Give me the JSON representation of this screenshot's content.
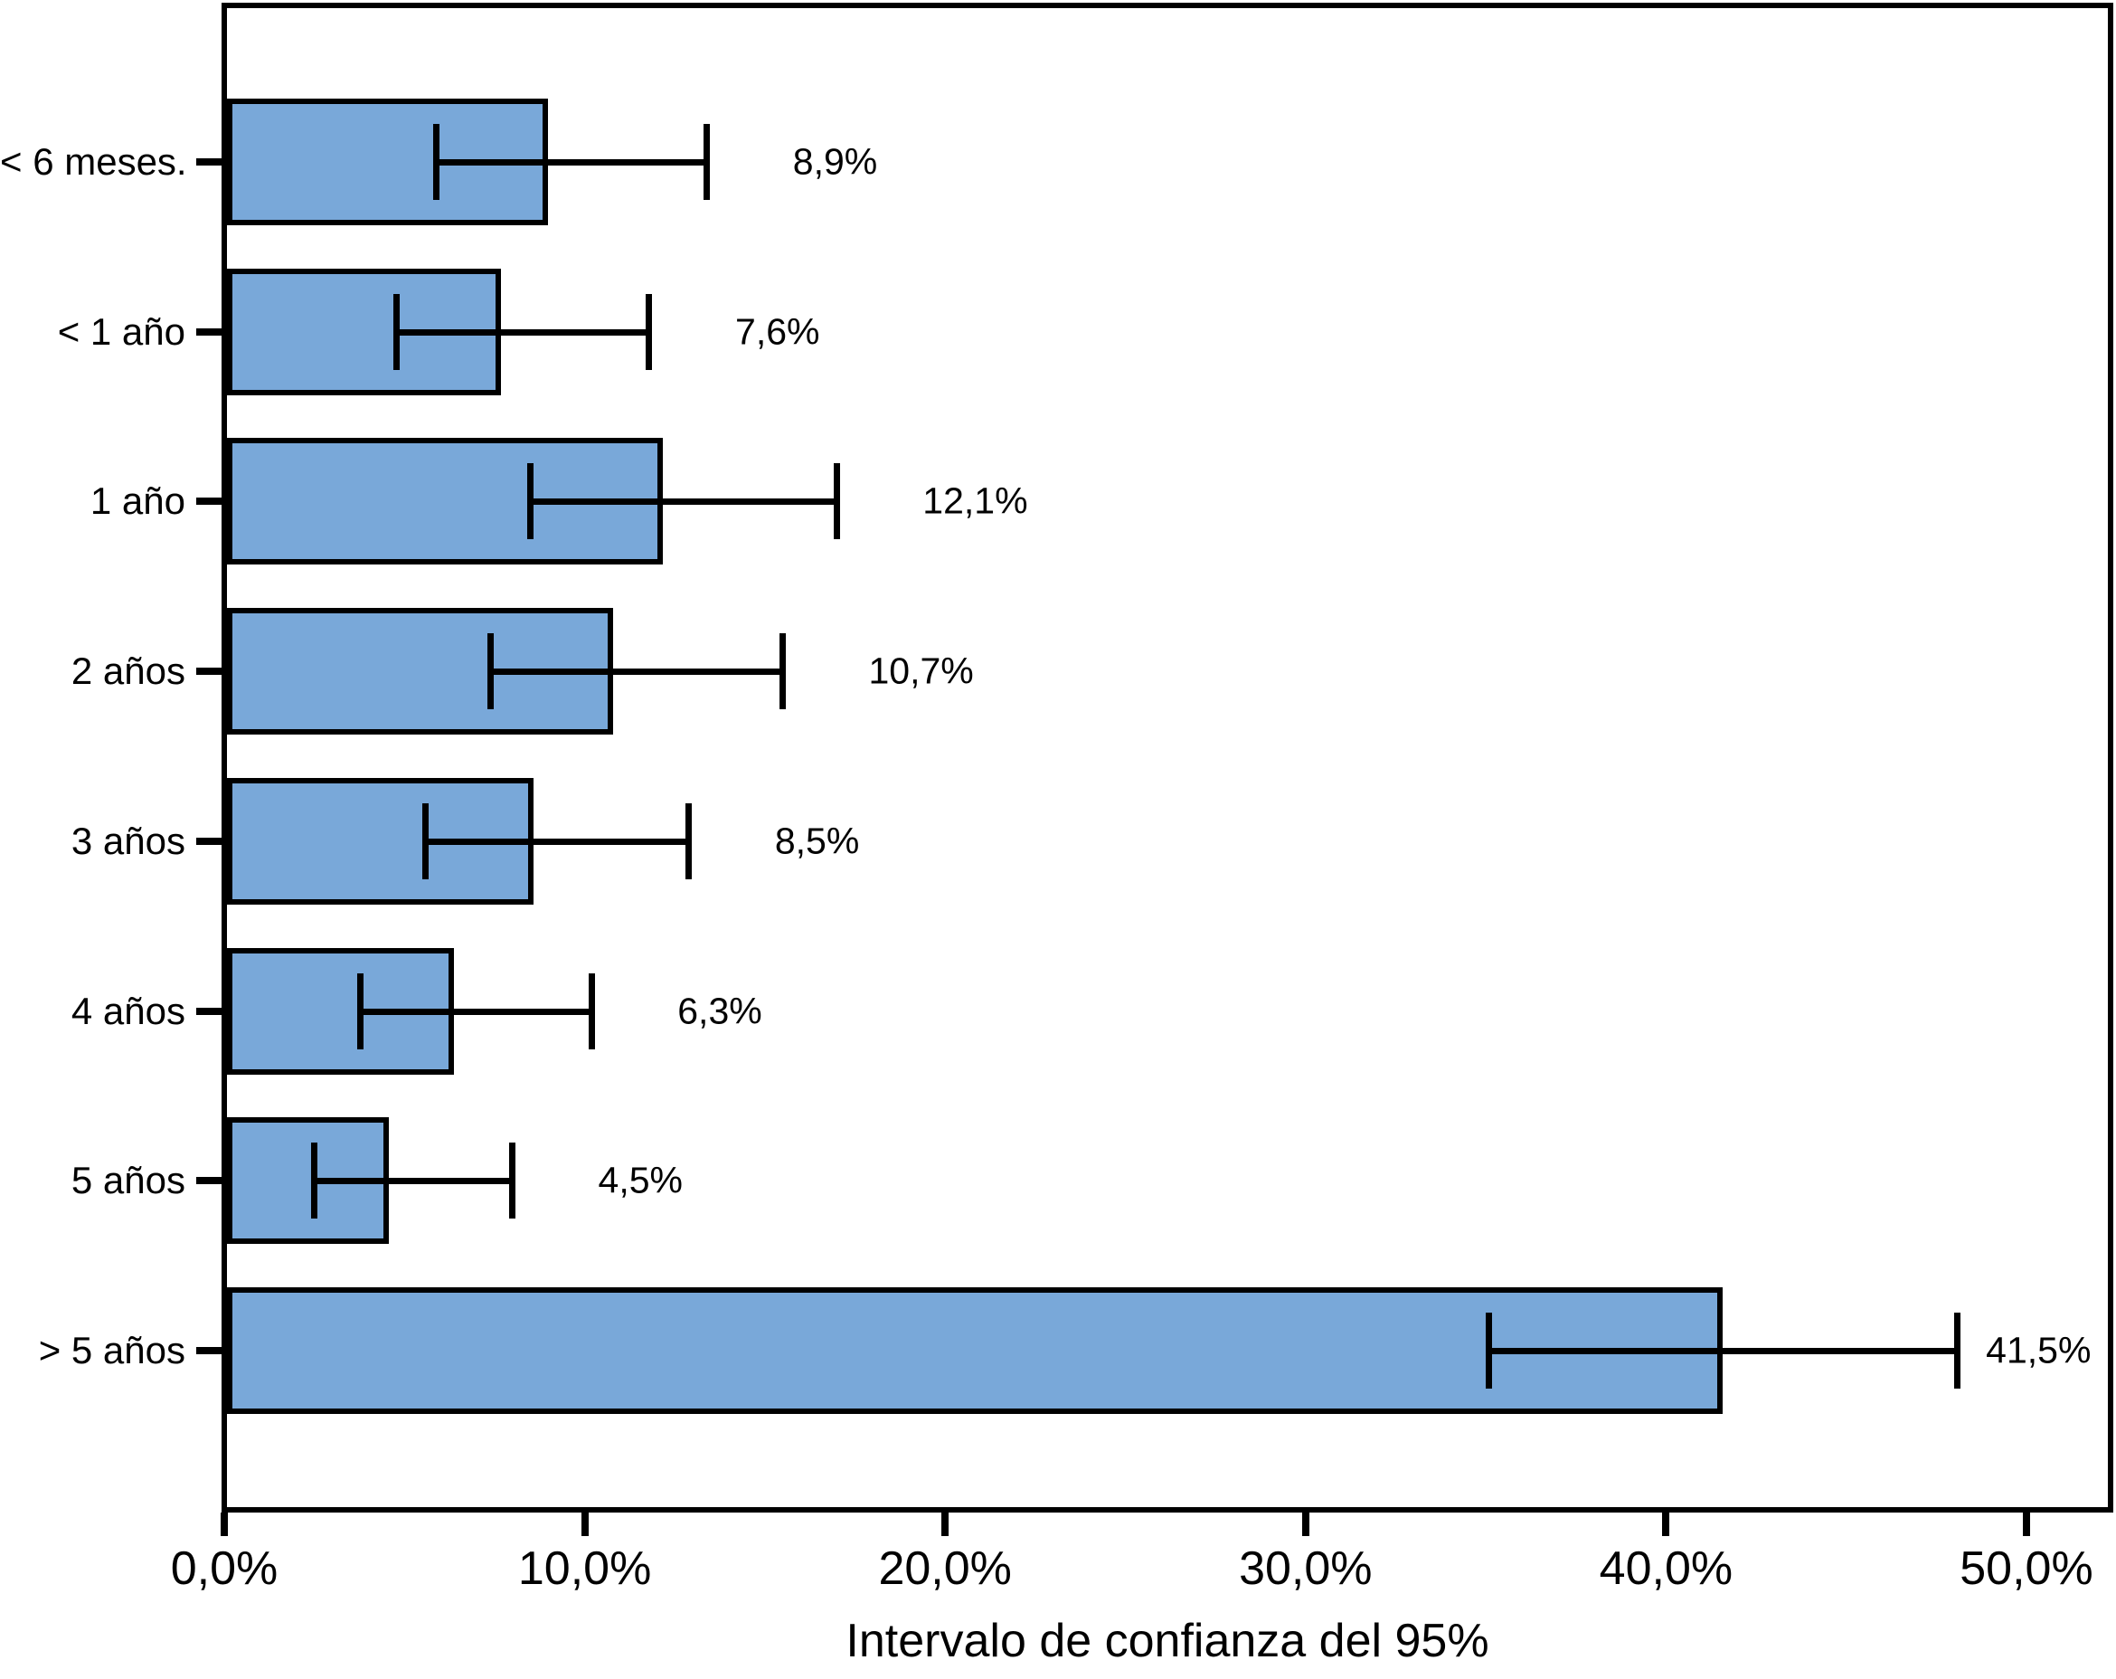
{
  "chart_data": {
    "type": "bar",
    "orientation": "horizontal",
    "title": "",
    "xlabel": "Intervalo de confianza del 95%",
    "ylabel": "",
    "xlim": [
      0,
      52.1
    ],
    "grid": false,
    "legend": false,
    "bar_color": "#79A8D9",
    "line_color": "#000000",
    "x_ticks": [
      {
        "value": 0,
        "label": "0,0%"
      },
      {
        "value": 10,
        "label": "10,0%"
      },
      {
        "value": 20,
        "label": "20,0%"
      },
      {
        "value": 30,
        "label": "30,0%"
      },
      {
        "value": 40,
        "label": "40,0%"
      },
      {
        "value": 50,
        "label": "50,0%"
      }
    ],
    "categories": [
      "< 6 meses.",
      "< 1 año",
      "1 año",
      "2 años",
      "3 años",
      "4 años",
      "5 años",
      "> 5 años"
    ],
    "values": [
      8.9,
      7.6,
      12.1,
      10.7,
      8.5,
      6.3,
      4.5,
      41.5
    ],
    "bars": [
      {
        "category": "< 6 meses.",
        "value": 8.9,
        "value_label": "8,9%",
        "ci_low": 5.8,
        "ci_high": 13.3
      },
      {
        "category": "< 1 año",
        "value": 7.6,
        "value_label": "7,6%",
        "ci_low": 4.7,
        "ci_high": 11.7
      },
      {
        "category": "1 año",
        "value": 12.1,
        "value_label": "12,1%",
        "ci_low": 8.4,
        "ci_high": 16.9
      },
      {
        "category": "2 años",
        "value": 10.7,
        "value_label": "10,7%",
        "ci_low": 7.3,
        "ci_high": 15.4
      },
      {
        "category": "3 años",
        "value": 8.5,
        "value_label": "8,5%",
        "ci_low": 5.5,
        "ci_high": 12.8
      },
      {
        "category": "4 años",
        "value": 6.3,
        "value_label": "6,3%",
        "ci_low": 3.7,
        "ci_high": 10.1
      },
      {
        "category": "5 años",
        "value": 4.5,
        "value_label": "4,5%",
        "ci_low": 2.4,
        "ci_high": 7.9
      },
      {
        "category": "> 5 años",
        "value": 41.5,
        "value_label": "41,5%",
        "ci_low": 35.0,
        "ci_high": 48.0
      }
    ]
  }
}
